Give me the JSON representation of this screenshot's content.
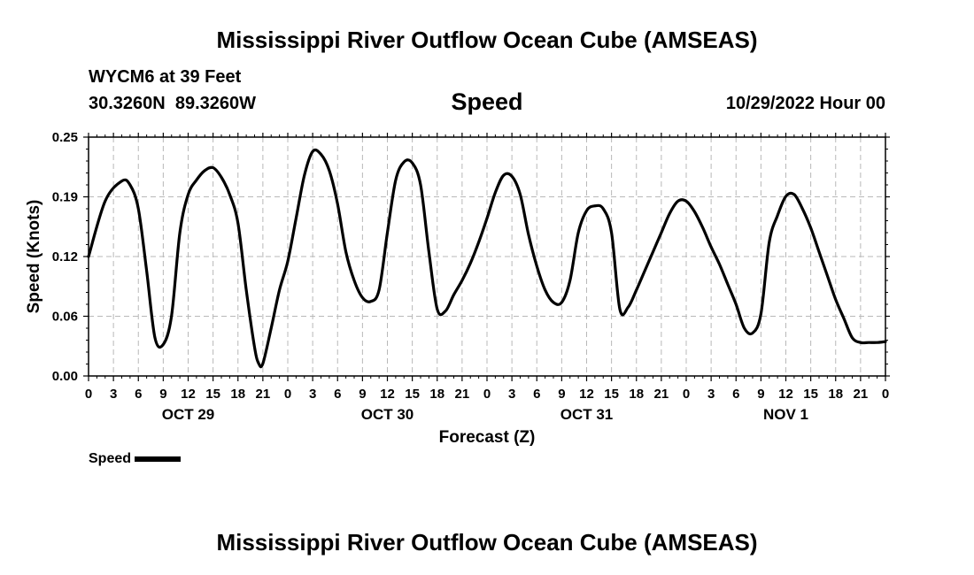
{
  "header": {
    "title": "Mississippi River Outflow Ocean Cube (AMSEAS)",
    "station": "WYCM6 at 39 Feet",
    "coordinates": "30.3260N  89.3260W",
    "parameter": "Speed",
    "datetime": "10/29/2022 Hour 00"
  },
  "footer": {
    "title": "Mississippi River Outflow Ocean Cube (AMSEAS)"
  },
  "legend": {
    "label": "Speed"
  },
  "chart_data": {
    "type": "line",
    "title": "Speed",
    "xlabel": "Forecast (Z)",
    "ylabel": "Speed (Knots)",
    "xlim": [
      0,
      96
    ],
    "ylim": [
      0,
      0.25
    ],
    "yticks": [
      "0.00",
      "0.06",
      "0.12",
      "0.19",
      "0.25"
    ],
    "ytick_values": [
      0,
      0.0625,
      0.125,
      0.1875,
      0.25
    ],
    "xtick_labels": [
      "0",
      "3",
      "6",
      "9",
      "12",
      "15",
      "18",
      "21",
      "0",
      "3",
      "6",
      "9",
      "12",
      "15",
      "18",
      "21",
      "0",
      "3",
      "6",
      "9",
      "12",
      "15",
      "18",
      "21",
      "0",
      "3",
      "6",
      "9",
      "12",
      "15",
      "18",
      "21",
      "0"
    ],
    "day_labels": [
      {
        "label": "OCT 29",
        "hour": 12
      },
      {
        "label": "OCT 30",
        "hour": 36
      },
      {
        "label": "OCT 31",
        "hour": 60
      },
      {
        "label": "NOV 1",
        "hour": 84
      }
    ],
    "grid": true,
    "series": [
      {
        "name": "Speed",
        "color": "#000000",
        "x": [
          0,
          2,
          4,
          5,
          6,
          7,
          8,
          9,
          10,
          11,
          12,
          13,
          14,
          15,
          16,
          17,
          18,
          19,
          20,
          20.5,
          21,
          22,
          23,
          24,
          25,
          26,
          27,
          28,
          29,
          30,
          31,
          32,
          33,
          34,
          35,
          36,
          37,
          38,
          39,
          40,
          41,
          42,
          43,
          44,
          45,
          46,
          47,
          48,
          49,
          50,
          51,
          52,
          53,
          54,
          55,
          56,
          57,
          58,
          59,
          60,
          61,
          62,
          63,
          64,
          65,
          66,
          67,
          68,
          69,
          70,
          71,
          72,
          73,
          74,
          75,
          76,
          77,
          78,
          79,
          80,
          81,
          82,
          83,
          84,
          85,
          86,
          87,
          88,
          89,
          90,
          91,
          92,
          93,
          94,
          95,
          96
        ],
        "y": [
          0.125,
          0.183,
          0.204,
          0.2,
          0.175,
          0.11,
          0.04,
          0.033,
          0.063,
          0.15,
          0.19,
          0.205,
          0.215,
          0.218,
          0.208,
          0.19,
          0.16,
          0.09,
          0.03,
          0.013,
          0.013,
          0.05,
          0.09,
          0.12,
          0.165,
          0.21,
          0.235,
          0.232,
          0.215,
          0.18,
          0.13,
          0.1,
          0.082,
          0.078,
          0.09,
          0.15,
          0.205,
          0.224,
          0.223,
          0.2,
          0.13,
          0.07,
          0.068,
          0.085,
          0.1,
          0.118,
          0.14,
          0.165,
          0.192,
          0.21,
          0.209,
          0.19,
          0.148,
          0.115,
          0.09,
          0.077,
          0.077,
          0.1,
          0.15,
          0.173,
          0.178,
          0.175,
          0.15,
          0.07,
          0.072,
          0.09,
          0.11,
          0.13,
          0.15,
          0.17,
          0.183,
          0.183,
          0.172,
          0.155,
          0.135,
          0.117,
          0.096,
          0.075,
          0.05,
          0.045,
          0.065,
          0.14,
          0.168,
          0.188,
          0.19,
          0.175,
          0.155,
          0.13,
          0.105,
          0.08,
          0.06,
          0.04,
          0.035,
          0.035,
          0.035,
          0.036
        ]
      }
    ]
  }
}
